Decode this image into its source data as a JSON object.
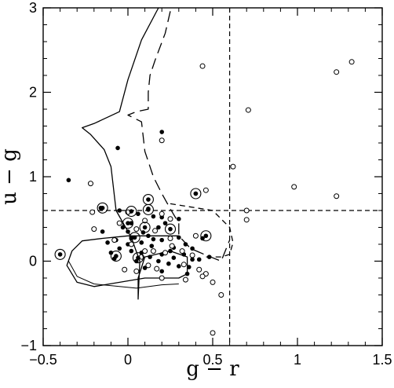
{
  "chart_data": {
    "type": "scatter",
    "xlabel": "g − r",
    "ylabel": "u − g",
    "xlim": [
      -0.5,
      1.5
    ],
    "ylim": [
      -1,
      3
    ],
    "xticks": [
      -0.5,
      0,
      0.5,
      1,
      1.5
    ],
    "xtick_labels": [
      "−0.5",
      "0",
      "0.5",
      "1",
      "1.5"
    ],
    "yticks": [
      -1,
      0,
      1,
      2,
      3
    ],
    "ytick_labels": [
      "−1",
      "0",
      "1",
      "2",
      "3"
    ],
    "grid": false,
    "reference_lines": {
      "vertical_x": 0.6,
      "horizontal_y": 0.6
    },
    "series": [
      {
        "marker": "filled-circle",
        "points": [
          [
            -0.35,
            0.96
          ],
          [
            -0.06,
            1.34
          ],
          [
            0.2,
            1.53
          ],
          [
            0.4,
            0.8
          ],
          [
            0.12,
            0.62
          ],
          [
            0.2,
            0.52
          ],
          [
            0.06,
            0.56
          ],
          [
            0.15,
            0.53
          ],
          [
            -0.16,
            0.63
          ],
          [
            -0.05,
            0.6
          ],
          [
            0.3,
            0.5
          ],
          [
            0.02,
            0.45
          ],
          [
            0.22,
            0.45
          ],
          [
            0.18,
            0.4
          ],
          [
            0.09,
            0.34
          ],
          [
            -0.15,
            0.35
          ],
          [
            -0.12,
            0.22
          ],
          [
            -0.07,
            0.25
          ],
          [
            -0.03,
            0.4
          ],
          [
            0.12,
            0.3
          ],
          [
            0.0,
            0.35
          ],
          [
            -0.05,
            0.15
          ],
          [
            -0.1,
            0.1
          ],
          [
            0.0,
            0.2
          ],
          [
            0.08,
            0.22
          ],
          [
            0.14,
            0.18
          ],
          [
            0.2,
            0.25
          ],
          [
            0.25,
            0.12
          ],
          [
            0.3,
            0.28
          ],
          [
            0.34,
            0.2
          ],
          [
            0.38,
            0.15
          ],
          [
            0.44,
            0.27
          ],
          [
            0.08,
            0.1
          ],
          [
            0.13,
            0.05
          ],
          [
            0.2,
            0.08
          ],
          [
            0.27,
            0.04
          ],
          [
            0.33,
            0.08
          ],
          [
            0.38,
            0.02
          ],
          [
            0.3,
            -0.06
          ],
          [
            0.36,
            -0.07
          ],
          [
            0.42,
            0.02
          ],
          [
            0.48,
            0.05
          ],
          [
            0.24,
            -0.03
          ],
          [
            0.1,
            -0.08
          ],
          [
            0.05,
            0.0
          ],
          [
            0.02,
            0.12
          ],
          [
            -0.02,
            -0.1
          ],
          [
            0.2,
            -0.12
          ],
          [
            0.35,
            -0.15
          ],
          [
            0.02,
            0.27
          ],
          [
            0.15,
            0.26
          ],
          [
            -0.08,
            0.03
          ],
          [
            0.18,
            0.0
          ],
          [
            0.27,
            0.16
          ]
        ]
      },
      {
        "marker": "open-circle",
        "points": [
          [
            0.44,
            2.31
          ],
          [
            1.32,
            2.36
          ],
          [
            1.23,
            2.24
          ],
          [
            0.71,
            1.79
          ],
          [
            0.2,
            1.43
          ],
          [
            0.62,
            1.12
          ],
          [
            0.98,
            0.88
          ],
          [
            1.23,
            0.77
          ],
          [
            -0.22,
            0.92
          ],
          [
            0.46,
            0.84
          ],
          [
            0.7,
            0.6
          ],
          [
            0.7,
            0.49
          ],
          [
            -0.21,
            0.58
          ],
          [
            0.0,
            0.58
          ],
          [
            0.2,
            0.56
          ],
          [
            0.25,
            0.5
          ],
          [
            0.1,
            0.48
          ],
          [
            -0.2,
            0.38
          ],
          [
            -0.08,
            0.25
          ],
          [
            0.05,
            0.38
          ],
          [
            0.16,
            0.36
          ],
          [
            0.1,
            0.12
          ],
          [
            0.15,
            0.12
          ],
          [
            0.22,
            0.1
          ],
          [
            0.26,
            0.18
          ],
          [
            0.32,
            0.12
          ],
          [
            0.38,
            0.07
          ],
          [
            -0.02,
            -0.1
          ],
          [
            0.05,
            -0.12
          ],
          [
            0.12,
            -0.05
          ],
          [
            0.17,
            -0.09
          ],
          [
            0.2,
            -0.2
          ],
          [
            0.33,
            -0.04
          ],
          [
            0.42,
            -0.1
          ],
          [
            0.46,
            -0.15
          ],
          [
            0.5,
            -0.25
          ],
          [
            0.44,
            -0.18
          ],
          [
            0.34,
            -0.22
          ],
          [
            0.55,
            -0.4
          ],
          [
            0.5,
            -0.85
          ],
          [
            0.4,
            0.3
          ],
          [
            0.25,
            0.27
          ],
          [
            -0.05,
            0.45
          ],
          [
            0.08,
            0.05
          ],
          [
            0.02,
            0.2
          ]
        ]
      },
      {
        "marker": "circled-dot",
        "points": [
          [
            0.4,
            0.8
          ],
          [
            0.12,
            0.73
          ],
          [
            -0.15,
            0.63
          ],
          [
            0.02,
            0.59
          ],
          [
            0.12,
            0.61
          ],
          [
            0.0,
            0.45
          ],
          [
            0.1,
            0.4
          ],
          [
            0.25,
            0.38
          ],
          [
            0.46,
            0.3
          ],
          [
            0.04,
            0.28
          ],
          [
            -0.4,
            0.08
          ],
          [
            -0.07,
            0.06
          ],
          [
            0.06,
            0.04
          ]
        ]
      }
    ],
    "tracks": [
      {
        "style": "solid",
        "points": [
          [
            0.18,
            3.0
          ],
          [
            0.08,
            2.62
          ],
          [
            0.0,
            2.15
          ],
          [
            -0.05,
            1.77
          ],
          [
            -0.2,
            1.63
          ],
          [
            -0.27,
            1.58
          ],
          [
            -0.22,
            1.5
          ],
          [
            -0.14,
            1.32
          ],
          [
            -0.1,
            1.12
          ],
          [
            -0.07,
            0.6
          ],
          [
            0.02,
            0.28
          ],
          [
            0.07,
            0.0
          ],
          [
            0.06,
            -0.45
          ],
          [
            0.06,
            -0.2
          ],
          [
            0.1,
            0.05
          ],
          [
            0.25,
            0.12
          ],
          [
            0.35,
            0.05
          ],
          [
            0.35,
            -0.15
          ],
          [
            0.3,
            -0.2
          ],
          [
            0.1,
            -0.2
          ],
          [
            -0.2,
            -0.3
          ],
          [
            -0.3,
            -0.25
          ],
          [
            -0.36,
            -0.05
          ],
          [
            -0.33,
            0.12
          ],
          [
            -0.27,
            0.24
          ],
          [
            -0.15,
            0.27
          ],
          [
            0.0,
            0.3
          ],
          [
            0.2,
            0.3
          ],
          [
            0.3,
            0.3
          ]
        ]
      },
      {
        "style": "solid-thin",
        "points": [
          [
            -0.35,
            0.0
          ],
          [
            -0.3,
            -0.18
          ],
          [
            -0.2,
            -0.27
          ],
          [
            -0.05,
            -0.3
          ],
          [
            0.05,
            -0.32
          ],
          [
            0.2,
            -0.28
          ],
          [
            0.3,
            -0.27
          ]
        ]
      },
      {
        "style": "long-dash",
        "points": [
          [
            0.25,
            2.96
          ],
          [
            0.22,
            2.7
          ],
          [
            0.16,
            2.38
          ],
          [
            0.13,
            2.2
          ],
          [
            0.12,
            2.0
          ],
          [
            0.12,
            1.8
          ],
          [
            0.05,
            1.77
          ],
          [
            0.0,
            1.73
          ],
          [
            0.08,
            1.65
          ],
          [
            0.1,
            1.3
          ],
          [
            0.15,
            1.0
          ],
          [
            0.2,
            0.8
          ],
          [
            0.25,
            0.62
          ],
          [
            0.3,
            0.45
          ],
          [
            0.3,
            0.3
          ],
          [
            0.37,
            0.15
          ],
          [
            0.45,
            0.08
          ],
          [
            0.55,
            0.0
          ],
          [
            0.6,
            0.25
          ]
        ]
      },
      {
        "style": "short-dash",
        "points": [
          [
            0.25,
            0.68
          ],
          [
            0.5,
            0.6
          ],
          [
            0.55,
            0.5
          ],
          [
            0.6,
            0.4
          ],
          [
            0.62,
            0.22
          ],
          [
            0.6,
            0.08
          ],
          [
            0.55,
            0.05
          ],
          [
            0.45,
            0.05
          ]
        ]
      }
    ]
  }
}
